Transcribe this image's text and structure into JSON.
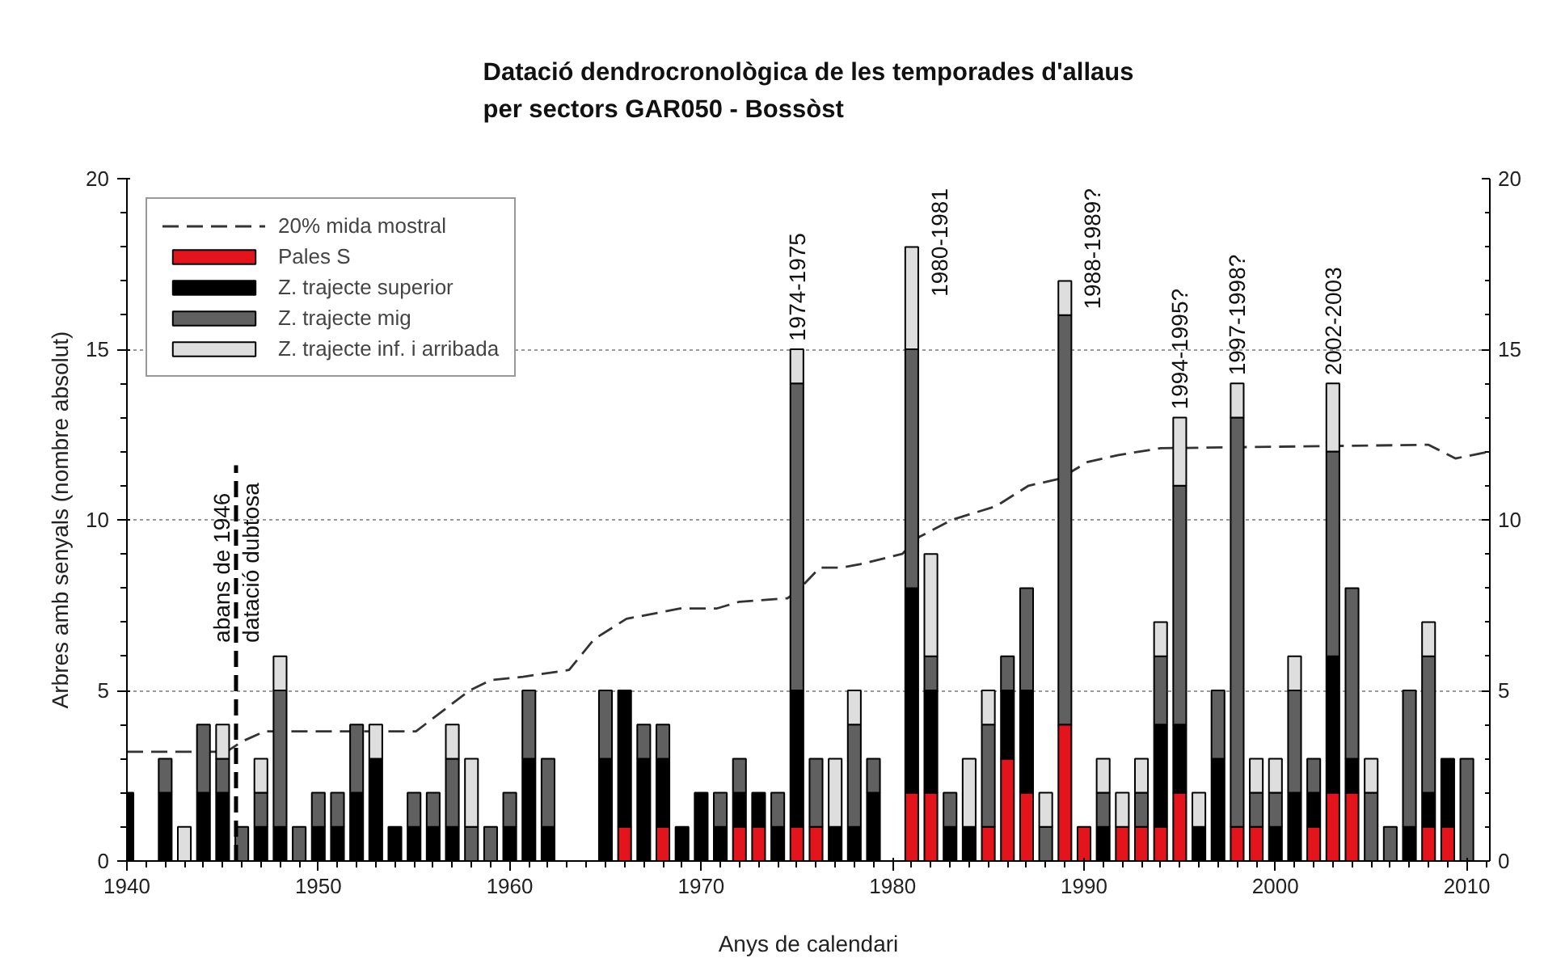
{
  "chart_data": {
    "type": "bar",
    "stacked": true,
    "title": "Datació dendrocronològica de les temporades d'allaus\nper sectors GAR050 - Bossòst",
    "xlabel": "Anys de calendari",
    "ylabel": "Arbres amb senyals (nombre absolut)",
    "x": [
      1940,
      1942,
      1943,
      1944,
      1945,
      1946,
      1947,
      1948,
      1949,
      1950,
      1951,
      1952,
      1953,
      1954,
      1955,
      1956,
      1957,
      1958,
      1959,
      1960,
      1961,
      1962,
      1965,
      1966,
      1967,
      1968,
      1969,
      1970,
      1971,
      1972,
      1973,
      1974,
      1975,
      1976,
      1977,
      1978,
      1979,
      1981,
      1982,
      1983,
      1984,
      1985,
      1986,
      1987,
      1988,
      1989,
      1990,
      1991,
      1992,
      1993,
      1994,
      1995,
      1996,
      1997,
      1998,
      1999,
      2000,
      2001,
      2002,
      2003,
      2004,
      2005,
      2006,
      2007,
      2008,
      2009,
      2010
    ],
    "series": [
      {
        "name": "20% mida mostral",
        "type": "line",
        "color": "#333333",
        "line_style": "dashed",
        "x": [
          1940,
          1945.2,
          1946,
          1947.2,
          1955.1,
          1957.9,
          1959,
          1960.7,
          1963.1,
          1964.4,
          1966.1,
          1968.9,
          1970.8,
          1972,
          1974.5,
          1975,
          1976.2,
          1977.3,
          1978.3,
          1980.5,
          1981.4,
          1983.1,
          1985.4,
          1987.1,
          1988.7,
          1990.2,
          1991.8,
          1994,
          2008,
          2009.4,
          2011.2
        ],
        "values": [
          3.2,
          3.2,
          3.5,
          3.8,
          3.8,
          5.0,
          5.3,
          5.4,
          5.6,
          6.5,
          7.1,
          7.4,
          7.4,
          7.6,
          7.7,
          7.9,
          8.6,
          8.6,
          8.7,
          9.0,
          9.5,
          10.0,
          10.4,
          11.0,
          11.2,
          11.7,
          11.9,
          12.1,
          12.2,
          11.8,
          12.0
        ]
      },
      {
        "name": "Pales S",
        "color": "#e3141b",
        "values": [
          null,
          null,
          null,
          null,
          null,
          null,
          null,
          null,
          null,
          null,
          null,
          null,
          null,
          null,
          null,
          null,
          null,
          null,
          null,
          null,
          null,
          null,
          null,
          1,
          null,
          1,
          null,
          null,
          null,
          1,
          1,
          null,
          1,
          1,
          null,
          null,
          null,
          2,
          2,
          null,
          null,
          1,
          3,
          2,
          null,
          4,
          1,
          null,
          1,
          1,
          1,
          2,
          null,
          null,
          1,
          1,
          null,
          null,
          1,
          2,
          2,
          null,
          null,
          null,
          1,
          1,
          null
        ]
      },
      {
        "name": "Z. trajecte superior",
        "color": "#000000",
        "values": [
          2,
          2,
          null,
          2,
          2,
          null,
          1,
          1,
          null,
          1,
          1,
          2,
          3,
          1,
          1,
          1,
          1,
          null,
          null,
          1,
          3,
          1,
          3,
          4,
          3,
          2,
          1,
          2,
          1,
          1,
          1,
          1,
          4,
          null,
          1,
          1,
          2,
          6,
          3,
          1,
          1,
          null,
          2,
          3,
          null,
          null,
          null,
          1,
          null,
          null,
          3,
          2,
          1,
          3,
          null,
          null,
          1,
          2,
          1,
          4,
          1,
          null,
          null,
          1,
          1,
          2,
          null
        ]
      },
      {
        "name": "Z. trajecte mig",
        "color": "#606060",
        "values": [
          null,
          1,
          null,
          2,
          1,
          1,
          1,
          4,
          1,
          1,
          1,
          2,
          null,
          null,
          1,
          1,
          2,
          1,
          1,
          1,
          2,
          2,
          2,
          null,
          1,
          1,
          null,
          null,
          1,
          1,
          null,
          1,
          9,
          2,
          null,
          3,
          1,
          7,
          1,
          1,
          null,
          3,
          1,
          3,
          1,
          12,
          null,
          1,
          null,
          1,
          2,
          7,
          null,
          2,
          12,
          1,
          1,
          3,
          1,
          6,
          5,
          2,
          1,
          4,
          4,
          null,
          3
        ]
      },
      {
        "name": "Z. trajecte inf. i arribada",
        "color": "#dedede",
        "values": [
          null,
          null,
          1,
          null,
          1,
          null,
          1,
          1,
          null,
          null,
          null,
          null,
          1,
          null,
          null,
          null,
          1,
          2,
          null,
          null,
          null,
          null,
          null,
          null,
          null,
          null,
          null,
          null,
          null,
          null,
          null,
          null,
          1,
          null,
          2,
          1,
          null,
          3,
          3,
          null,
          2,
          1,
          null,
          null,
          1,
          1,
          null,
          1,
          1,
          1,
          1,
          2,
          1,
          null,
          1,
          1,
          1,
          1,
          null,
          2,
          null,
          1,
          null,
          null,
          1,
          null,
          null
        ]
      }
    ],
    "xlim": [
      1940,
      2011.2
    ],
    "xticks": [
      1940,
      1950,
      1960,
      1970,
      1980,
      1990,
      2000,
      2010
    ],
    "ylim": [
      0,
      20
    ],
    "yticks": [
      0,
      5,
      10,
      15,
      20
    ],
    "y2lim": [
      0,
      20
    ],
    "y2ticks": [
      0,
      5,
      10,
      15,
      20
    ],
    "grid": "y",
    "legend": "top left",
    "ref_lines": [
      {
        "axis": "x",
        "value": 1945.7,
        "label": "abans de 1946",
        "color": "#000000",
        "line_style": "dashed"
      }
    ],
    "annotations": [
      {
        "text": "datació dubtosa",
        "x": 1945.7,
        "y": 6.4
      },
      {
        "text": "1974-1975",
        "x": 1975,
        "y": 15
      },
      {
        "text": "1980-1981",
        "x": 1981,
        "y": 18
      },
      {
        "text": "1988-1989?",
        "x": 1989,
        "y": 17
      },
      {
        "text": "1994-1995?",
        "x": 1995,
        "y": 13
      },
      {
        "text": "1997-1998?",
        "x": 1998,
        "y": 14
      },
      {
        "text": "2002-2003",
        "x": 2003,
        "y": 14
      }
    ]
  }
}
